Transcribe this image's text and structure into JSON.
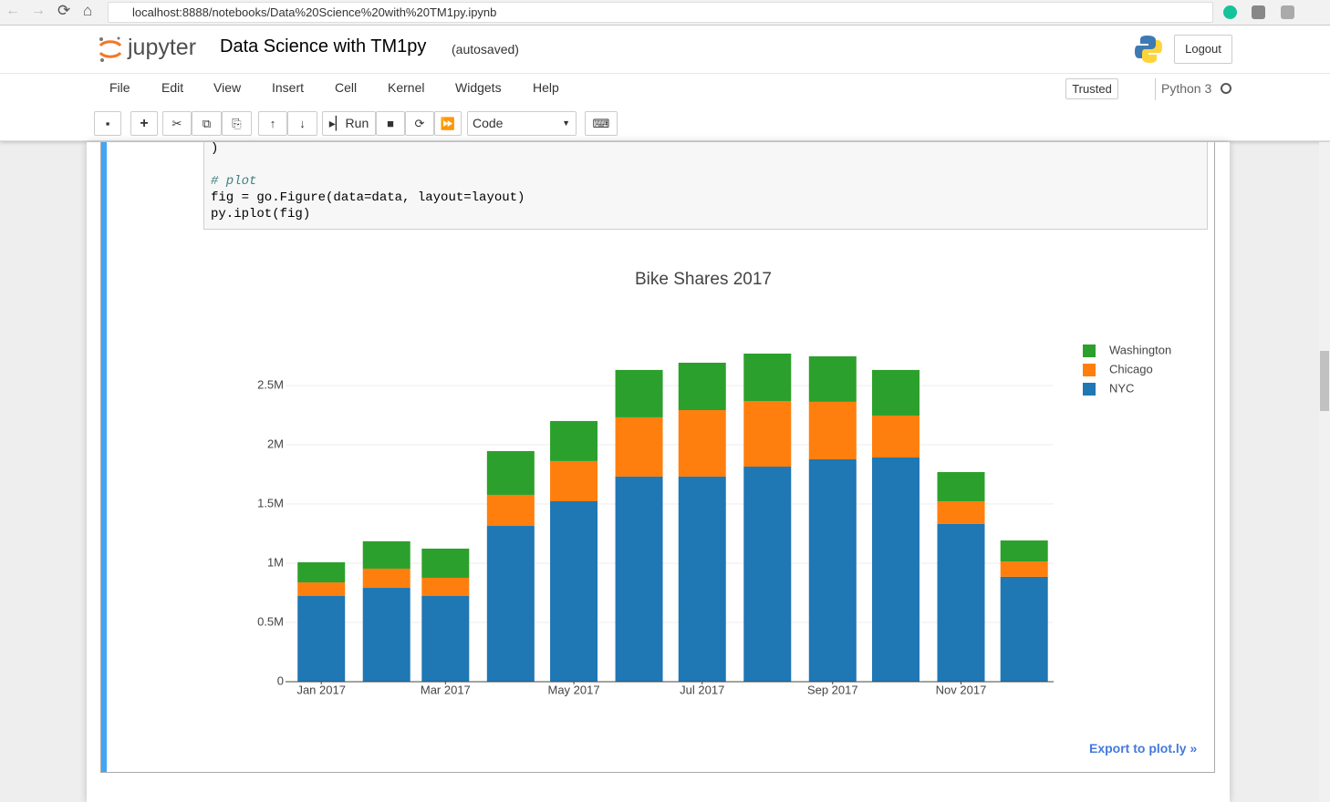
{
  "browser": {
    "url": "localhost:8888/notebooks/Data%20Science%20with%20TM1py.ipynb"
  },
  "header": {
    "logo": "jupyter",
    "title": "Data Science with TM1py",
    "status": "(autosaved)",
    "logout": "Logout"
  },
  "menu": [
    "File",
    "Edit",
    "View",
    "Insert",
    "Cell",
    "Kernel",
    "Widgets",
    "Help"
  ],
  "kernel": {
    "trusted": "Trusted",
    "name": "Python 3"
  },
  "toolbar": {
    "run": "Run",
    "cell_type": "Code"
  },
  "code": [
    ")",
    "# plot",
    "fig = go.Figure(data=data, layout=layout)",
    "py.iplot(fig)"
  ],
  "export": "Export to plot.ly »",
  "chart_data": {
    "type": "bar",
    "stacked": true,
    "title": "Bike Shares 2017",
    "x": [
      "2017-01",
      "2017-02",
      "2017-03",
      "2017-04",
      "2017-05",
      "2017-06",
      "2017-07",
      "2017-08",
      "2017-09",
      "2017-10",
      "2017-11",
      "2017-12"
    ],
    "series": [
      {
        "name": "NYC",
        "color": "#1f77b4",
        "values": [
          723000,
          792000,
          723000,
          1315000,
          1523000,
          1731000,
          1731000,
          1815000,
          1877000,
          1892000,
          1331000,
          885000
        ]
      },
      {
        "name": "Chicago",
        "color": "#ff7f0e",
        "values": [
          115000,
          162000,
          154000,
          262000,
          339000,
          500000,
          561000,
          554000,
          485000,
          354000,
          192000,
          130000
        ]
      },
      {
        "name": "Washington",
        "color": "#2ca02c",
        "values": [
          170000,
          231000,
          246000,
          369000,
          338000,
          400000,
          400000,
          400000,
          384000,
          385000,
          246000,
          177000
        ]
      }
    ],
    "xlim": [
      "2016-12-15",
      "2017-12-15"
    ],
    "xticks": [
      {
        "value": "2017-01",
        "label": "Jan 2017"
      },
      {
        "value": "2017-03",
        "label": "Mar 2017"
      },
      {
        "value": "2017-05",
        "label": "May 2017"
      },
      {
        "value": "2017-07",
        "label": "Jul 2017"
      },
      {
        "value": "2017-09",
        "label": "Sep 2017"
      },
      {
        "value": "2017-11",
        "label": "Nov 2017"
      }
    ],
    "ylim": [
      0,
      2915000
    ],
    "yticks": [
      0,
      {
        "value": 500000,
        "label": "0.5M"
      },
      {
        "value": 1000000,
        "label": "1M"
      },
      {
        "value": 1500000,
        "label": "1.5M"
      },
      {
        "value": 2000000,
        "label": "2M"
      },
      {
        "value": 2500000,
        "label": "2.5M"
      }
    ],
    "grid": true,
    "legend": "top-right"
  }
}
